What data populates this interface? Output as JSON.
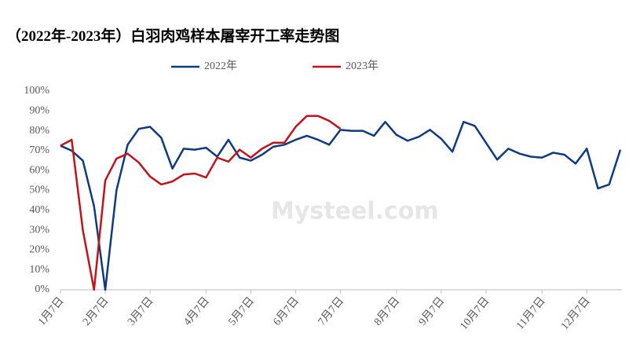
{
  "chart_data": {
    "type": "line",
    "title": "（2022年-2023年）白羽肉鸡样本屠宰开工率走势图",
    "watermark": "Mysteel.com",
    "categories": [
      "1月7日",
      null,
      null,
      null,
      "2月7日",
      null,
      null,
      null,
      "3月7日",
      null,
      null,
      null,
      null,
      "4月7日",
      null,
      null,
      null,
      "5月7日",
      null,
      null,
      null,
      "6月7日",
      null,
      null,
      null,
      "7月7日",
      null,
      null,
      null,
      null,
      "8月7日",
      null,
      null,
      null,
      "9月7日",
      null,
      null,
      null,
      "10月7日",
      null,
      null,
      null,
      null,
      "11月7日",
      null,
      null,
      null,
      "12月7日",
      null,
      null,
      null
    ],
    "series": [
      {
        "name": "2022年",
        "color": "#0e3a7e",
        "values": [
          72.5,
          70,
          65,
          42,
          0,
          50,
          73,
          81,
          82,
          76.5,
          61,
          71,
          70.5,
          71.5,
          67,
          75.5,
          66.5,
          65,
          68,
          72,
          73,
          75.5,
          77.5,
          75.5,
          73,
          80.5,
          80,
          80,
          77.5,
          84.5,
          78,
          75,
          77,
          80.5,
          76,
          69.5,
          84.5,
          82.5,
          74,
          65.5,
          71,
          68.5,
          67,
          66.5,
          69,
          68,
          63.5,
          71,
          51,
          53,
          70.5
        ]
      },
      {
        "name": "2023年",
        "color": "#c0131b",
        "values": [
          72.5,
          75.5,
          30,
          0,
          55,
          66,
          68.5,
          64,
          57,
          53,
          54.5,
          58,
          58.5,
          56.5,
          66.5,
          64.5,
          70.5,
          66.5,
          71,
          74,
          74,
          82,
          87.5,
          87.5,
          85,
          81,
          null,
          null,
          null,
          null,
          null,
          null,
          null,
          null,
          null,
          null,
          null,
          null,
          null,
          null,
          null,
          null,
          null,
          null,
          null,
          null,
          null,
          null,
          null,
          null,
          null
        ]
      }
    ],
    "ylim": [
      0,
      100
    ],
    "yticks": [
      {
        "value": 0,
        "label": "0%"
      },
      {
        "value": 10,
        "label": "10%"
      },
      {
        "value": 20,
        "label": "20%"
      },
      {
        "value": 30,
        "label": "30%"
      },
      {
        "value": 40,
        "label": "40%"
      },
      {
        "value": 50,
        "label": "50%"
      },
      {
        "value": 60,
        "label": "60%"
      },
      {
        "value": 70,
        "label": "70%"
      },
      {
        "value": 80,
        "label": "80%"
      },
      {
        "value": 90,
        "label": "90%"
      },
      {
        "value": 100,
        "label": "100%"
      }
    ],
    "grid": false
  }
}
